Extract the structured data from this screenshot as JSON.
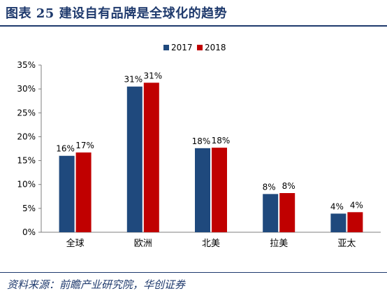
{
  "header": {
    "title": "图表 25    建设自有品牌是全球化的趋势"
  },
  "footer": {
    "source": "资料来源：前瞻产业研究院，华创证券"
  },
  "colors": {
    "series_2017": "#1f497d",
    "series_2018": "#c00000",
    "title": "#1f3a6d"
  },
  "chart_data": {
    "type": "bar",
    "categories": [
      "全球",
      "欧洲",
      "北美",
      "拉美",
      "亚太"
    ],
    "series": [
      {
        "name": "2017",
        "values": [
          16,
          30.5,
          17.6,
          8.0,
          3.9
        ],
        "labels": [
          "16%",
          "31%",
          "18%",
          "8%",
          "4%"
        ]
      },
      {
        "name": "2018",
        "values": [
          16.7,
          31.3,
          17.7,
          8.2,
          4.2
        ],
        "labels": [
          "17%",
          "31%",
          "18%",
          "8%",
          "4%"
        ]
      }
    ],
    "ylim": [
      0,
      35
    ],
    "yticks": [
      "0%",
      "5%",
      "10%",
      "15%",
      "20%",
      "25%",
      "30%",
      "35%"
    ],
    "legend_position": "top-center",
    "grid": false
  }
}
